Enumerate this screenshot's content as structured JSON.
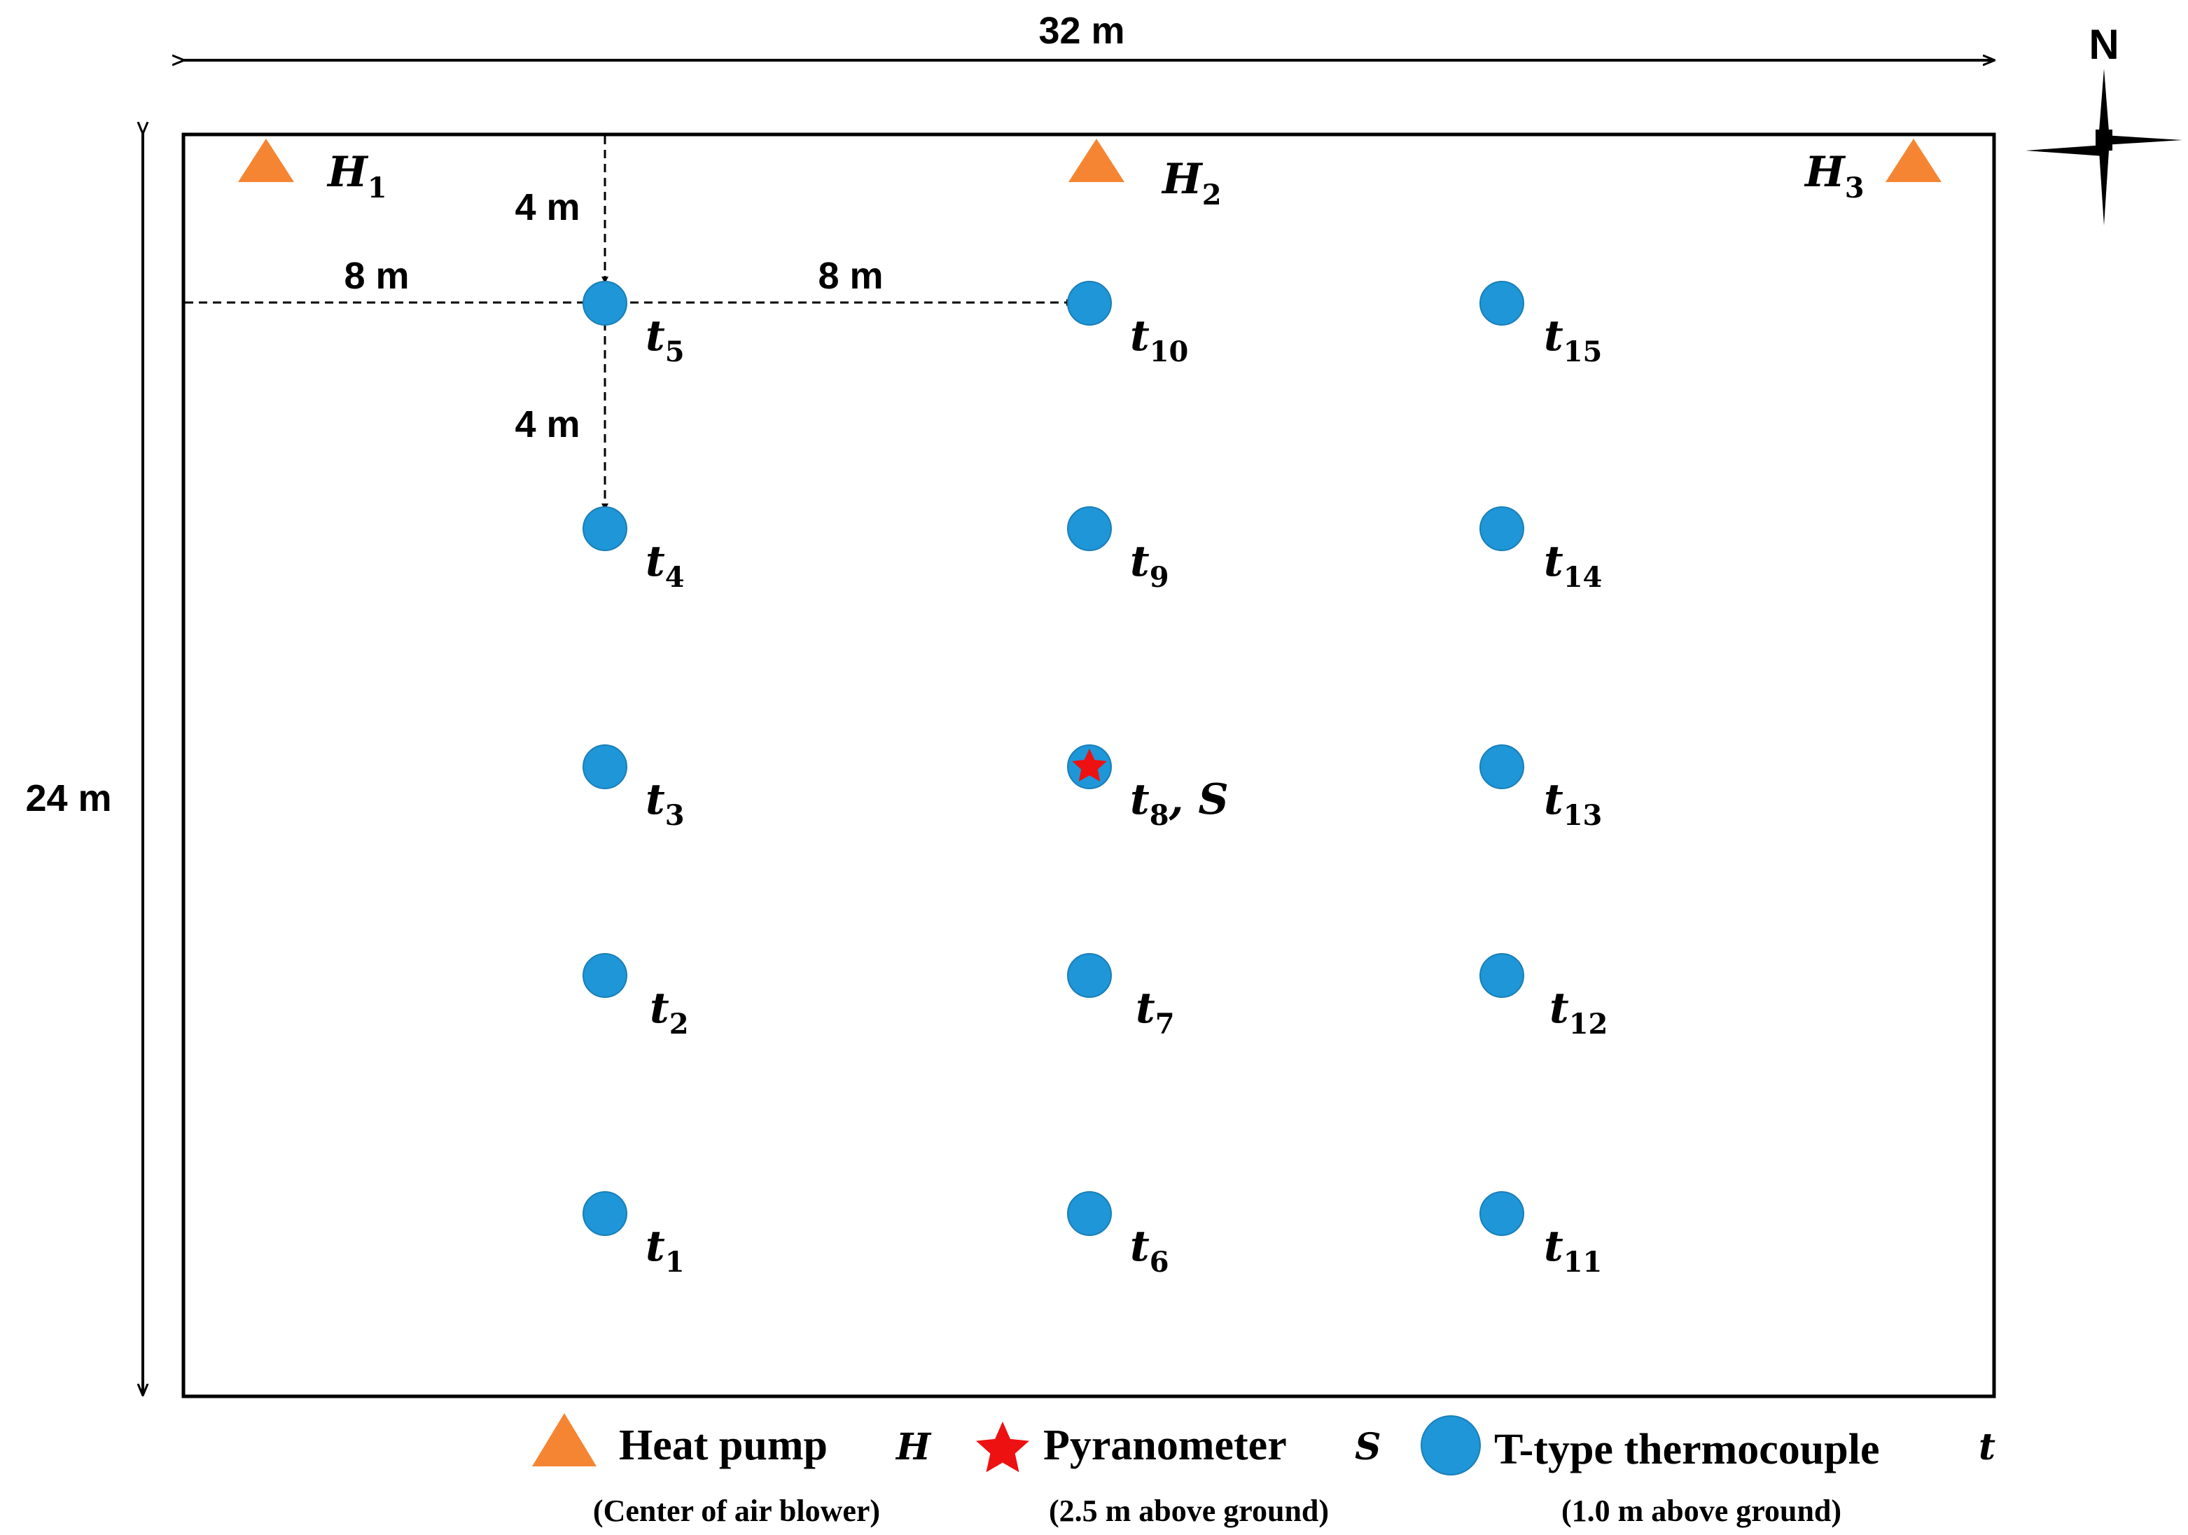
{
  "dimensions": {
    "width_label": "32 m",
    "height_label": "24 m",
    "spacing_x_left": "8 m",
    "spacing_x_between": "8 m",
    "spacing_y_top": "4 m",
    "spacing_y_between": "4 m"
  },
  "compass": {
    "north_label": "N"
  },
  "heat_pumps": [
    {
      "main": "H",
      "sub": "1"
    },
    {
      "main": "H",
      "sub": "2"
    },
    {
      "main": "H",
      "sub": "3"
    }
  ],
  "thermocouples": [
    {
      "main": "t",
      "sub": "1"
    },
    {
      "main": "t",
      "sub": "2"
    },
    {
      "main": "t",
      "sub": "3"
    },
    {
      "main": "t",
      "sub": "4"
    },
    {
      "main": "t",
      "sub": "5"
    },
    {
      "main": "t",
      "sub": "6"
    },
    {
      "main": "t",
      "sub": "7"
    },
    {
      "main": "t",
      "sub": "8",
      "suffix": ", S"
    },
    {
      "main": "t",
      "sub": "9"
    },
    {
      "main": "t",
      "sub": "10"
    },
    {
      "main": "t",
      "sub": "11"
    },
    {
      "main": "t",
      "sub": "12"
    },
    {
      "main": "t",
      "sub": "13"
    },
    {
      "main": "t",
      "sub": "14"
    },
    {
      "main": "t",
      "sub": "15"
    }
  ],
  "legend": {
    "heat_pump": {
      "label": "Heat pump",
      "symbol": "H",
      "note": "(Center of air blower)"
    },
    "pyranometer": {
      "label": "Pyranometer",
      "symbol": "S",
      "note": "(2.5 m above ground)"
    },
    "thermocouple": {
      "label": "T-type thermocouple",
      "symbol": "t",
      "note": "(1.0 m above ground)"
    }
  },
  "colors": {
    "heat_pump": "#f58532",
    "thermocouple": "#1e96d8",
    "pyranometer": "#ee1111",
    "outline": "#000000"
  }
}
